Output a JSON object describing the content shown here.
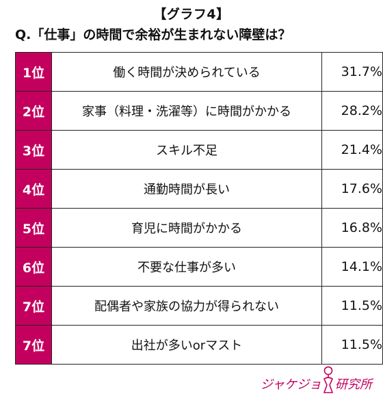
{
  "title": "【グラフ4】",
  "subtitle": "Q.「仕事」の時間で余裕が生まれない障壁は？",
  "colors": {
    "rank_bg": "#c4005e",
    "logo": "#c4005e",
    "border": "#222222"
  },
  "rows": [
    {
      "rank": "1位",
      "item": "働く時間が決められている",
      "percent": "31.7%"
    },
    {
      "rank": "2位",
      "item": "家事（料理・洗濯等）に時間がかかる",
      "percent": "28.2%"
    },
    {
      "rank": "3位",
      "item": "スキル不足",
      "percent": "21.4%"
    },
    {
      "rank": "4位",
      "item": "通勤時間が長い",
      "percent": "17.6%"
    },
    {
      "rank": "5位",
      "item": "育児に時間がかかる",
      "percent": "16.8%"
    },
    {
      "rank": "6位",
      "item": "不要な仕事が多い",
      "percent": "14.1%"
    },
    {
      "rank": "7位",
      "item": "配偶者や家族の協力が得られない",
      "percent": "11.5%"
    },
    {
      "rank": "7位",
      "item": "出社が多いorマスト",
      "percent": "11.5%"
    }
  ],
  "chart_data": {
    "type": "table",
    "title": "【グラフ4】",
    "subtitle": "Q.「仕事」の時間で余裕が生まれない障壁は？",
    "columns": [
      "rank",
      "item",
      "percent"
    ],
    "categories": [
      "働く時間が決められている",
      "家事（料理・洗濯等）に時間がかかる",
      "スキル不足",
      "通勤時間が長い",
      "育児に時間がかかる",
      "不要な仕事が多い",
      "配偶者や家族の協力が得られない",
      "出社が多いorマスト"
    ],
    "ranks": [
      "1位",
      "2位",
      "3位",
      "4位",
      "5位",
      "6位",
      "7位",
      "7位"
    ],
    "values": [
      31.7,
      28.2,
      21.4,
      17.6,
      16.8,
      14.1,
      11.5,
      11.5
    ],
    "unit": "%"
  },
  "logo": {
    "left_text": "ジャケジョ",
    "right_text": "研究所"
  }
}
